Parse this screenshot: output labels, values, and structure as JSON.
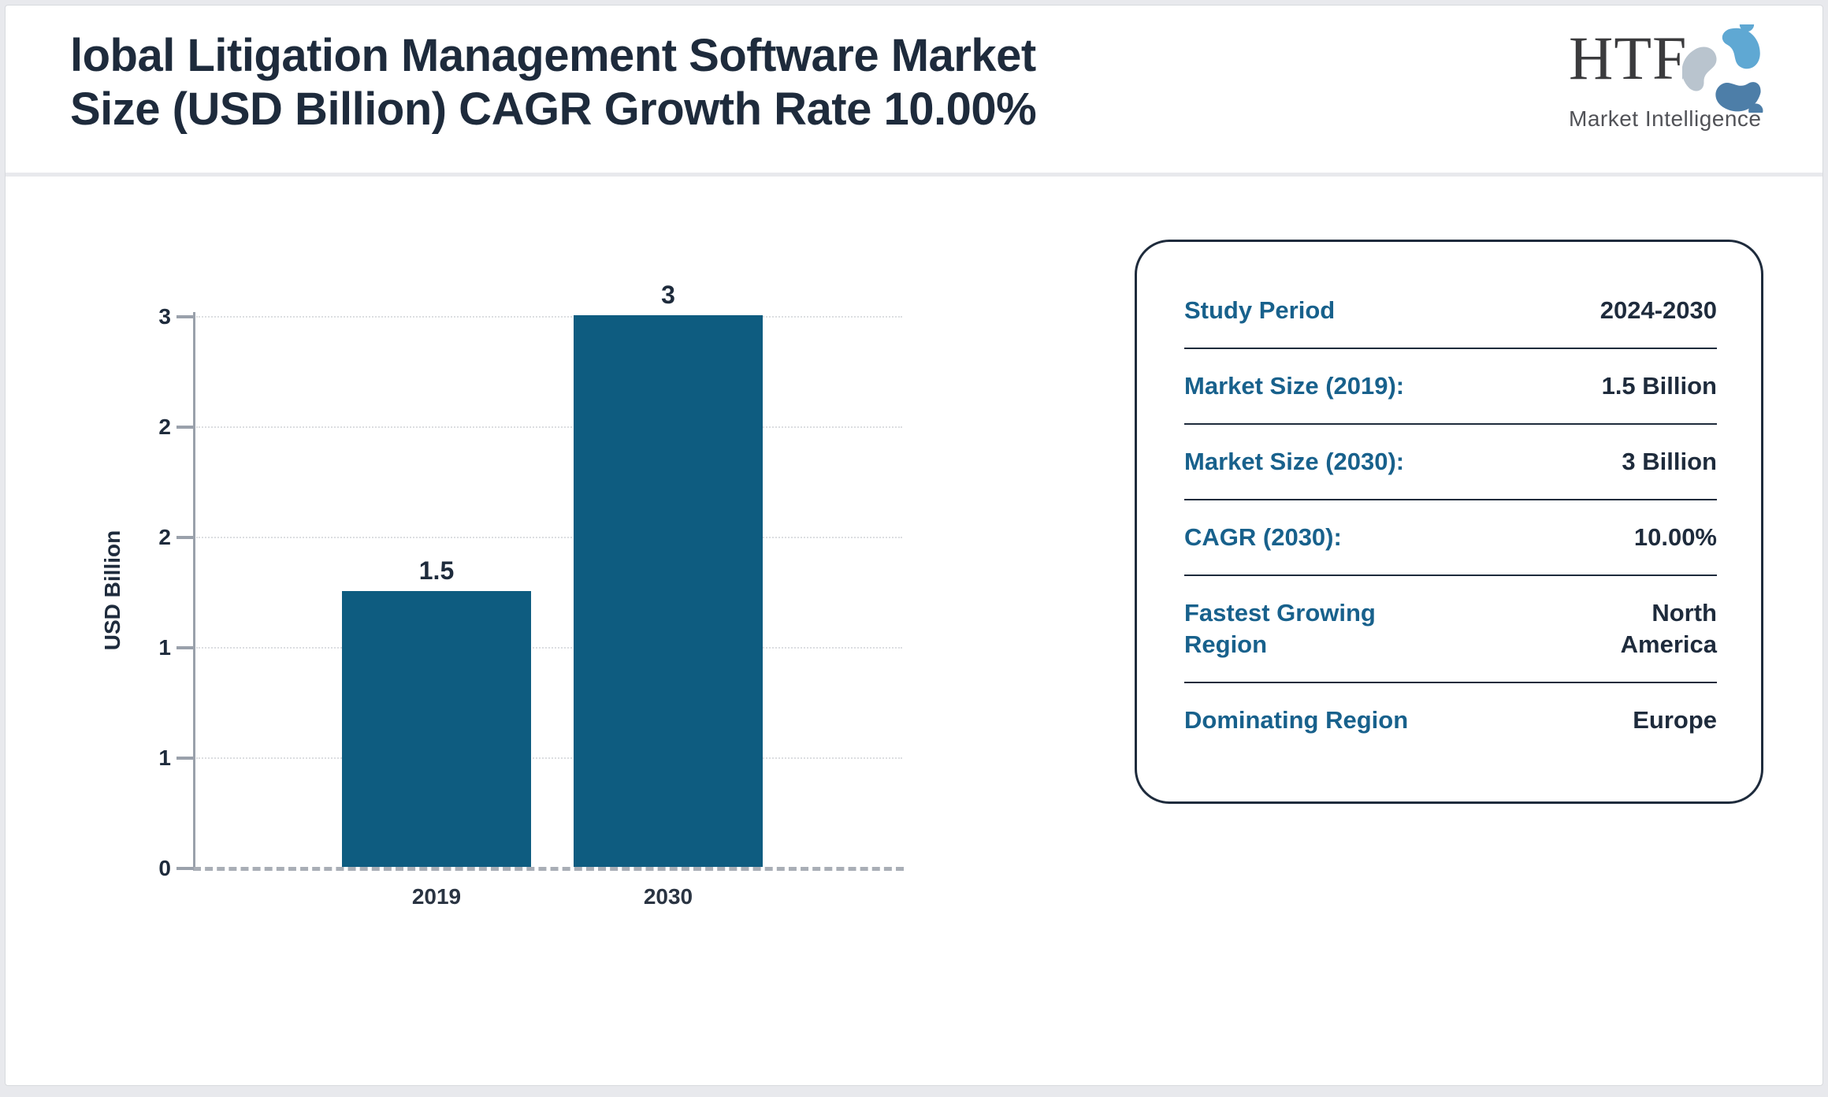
{
  "header": {
    "title_line1": "lobal Litigation Management Software Market",
    "title_line2": "Size (USD Billion) CAGR Growth Rate 10.00%"
  },
  "logo": {
    "brand": "HTF",
    "tagline": "Market Intelligence"
  },
  "chart_data": {
    "type": "bar",
    "title": "Global Litigation Management Software Market Size (USD Billion)",
    "categories": [
      "2019",
      "2030"
    ],
    "values": [
      1.5,
      3
    ],
    "bar_labels": [
      "1.5",
      "3"
    ],
    "xlabel": "",
    "ylabel": "USD Billion",
    "ylim": [
      0,
      3
    ],
    "y_tick_values": [
      3,
      2.4,
      1.8,
      1.2,
      0.6,
      0
    ],
    "y_tick_labels": [
      "3",
      "2",
      "2",
      "1",
      "1",
      "0"
    ],
    "grid": "horizontal dotted, dashed zero baseline",
    "legend": "none",
    "bar_color": "#0E5C80"
  },
  "panel": {
    "rows": [
      {
        "label": "Study Period",
        "value": "2024-2030"
      },
      {
        "label": "Market Size (2019):",
        "value": "1.5 Billion"
      },
      {
        "label": "Market Size (2030):",
        "value": "3 Billion"
      },
      {
        "label": "CAGR (2030):",
        "value": "10.00%"
      },
      {
        "label": "Fastest Growing\nRegion",
        "value": "North\nAmerica"
      },
      {
        "label": "Dominating Region",
        "value": "Europe"
      }
    ]
  },
  "colors": {
    "bar": "#0E5C80",
    "accent_teal": "#18618C",
    "navy": "#1E2B3C",
    "page_background": "#E8E9ED"
  }
}
